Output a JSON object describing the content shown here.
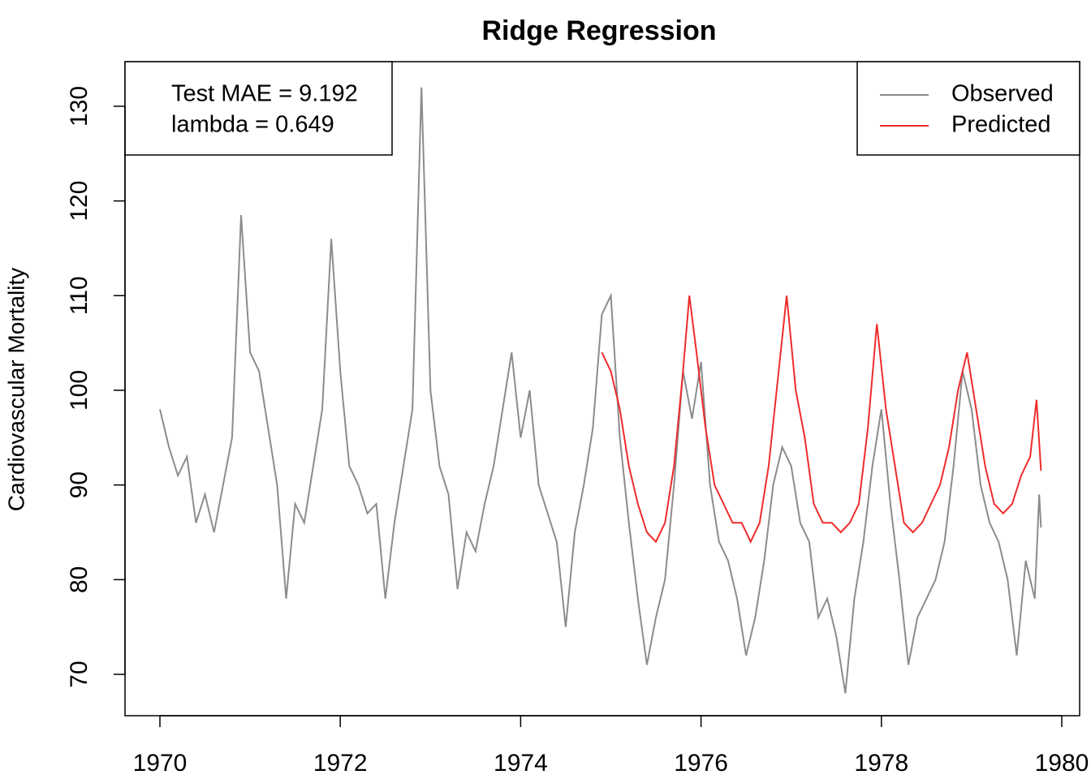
{
  "chart_data": {
    "type": "line",
    "title": "Ridge Regression",
    "y_label": "Cardiovascular Mortality",
    "annotations": [
      "Test MAE = 9.192",
      "lambda = 0.649"
    ],
    "xlim": [
      1969.613,
      1980.198
    ],
    "xticks": [
      1970,
      1972,
      1974,
      1976,
      1978,
      1980
    ],
    "ylim": [
      65.63,
      134.71
    ],
    "yticks": [
      70,
      80,
      90,
      100,
      110,
      120,
      130
    ],
    "grid": false,
    "legend": "top-right",
    "series": [
      {
        "name": "Observed",
        "color": "#8c8c8c",
        "x": [
          1970.0,
          1970.1,
          1970.2,
          1970.3,
          1970.4,
          1970.5,
          1970.6,
          1970.7,
          1970.8,
          1970.9,
          1971.0,
          1971.1,
          1971.2,
          1971.3,
          1971.4,
          1971.5,
          1971.6,
          1971.7,
          1971.8,
          1971.9,
          1972.0,
          1972.1,
          1972.2,
          1972.3,
          1972.4,
          1972.5,
          1972.6,
          1972.7,
          1972.8,
          1972.9,
          1973.0,
          1973.1,
          1973.2,
          1973.3,
          1973.4,
          1973.5,
          1973.6,
          1973.7,
          1973.8,
          1973.9,
          1974.0,
          1974.1,
          1974.2,
          1974.3,
          1974.4,
          1974.5,
          1974.6,
          1974.7,
          1974.8,
          1974.9,
          1975.0,
          1975.1,
          1975.2,
          1975.3,
          1975.4,
          1975.5,
          1975.6,
          1975.7,
          1975.8,
          1975.9,
          1976.0,
          1976.1,
          1976.2,
          1976.3,
          1976.4,
          1976.5,
          1976.6,
          1976.7,
          1976.8,
          1976.9,
          1977.0,
          1977.1,
          1977.2,
          1977.3,
          1977.4,
          1977.5,
          1977.6,
          1977.7,
          1977.8,
          1977.9,
          1978.0,
          1978.1,
          1978.2,
          1978.3,
          1978.4,
          1978.5,
          1978.6,
          1978.7,
          1978.8,
          1978.9,
          1979.0,
          1979.1,
          1979.2,
          1979.3,
          1979.4,
          1979.5,
          1979.6,
          1979.7,
          1979.75,
          1979.77
        ],
        "values": [
          98,
          94,
          91,
          93,
          86,
          89,
          85,
          90,
          95,
          118.5,
          104,
          102,
          96,
          90,
          78,
          88,
          86,
          92,
          98,
          116,
          102,
          92,
          90,
          87,
          88,
          78,
          86,
          92,
          98,
          132,
          100,
          92,
          89,
          79,
          85,
          83,
          88,
          92,
          98,
          104,
          95,
          100,
          90,
          87,
          84,
          75,
          85,
          90,
          96,
          108,
          110,
          95,
          86,
          78,
          71,
          76,
          80,
          90,
          102,
          97,
          103,
          90,
          84,
          82,
          78,
          72,
          76,
          82,
          90,
          94,
          92,
          86,
          84,
          76,
          78,
          74,
          68,
          78,
          84,
          92,
          98,
          88,
          80,
          71,
          76,
          78,
          80,
          84,
          92,
          102,
          98,
          90,
          86,
          84,
          80,
          72,
          82,
          78,
          89,
          85.5
        ]
      },
      {
        "name": "Predicted",
        "color": "#ee2c2c",
        "x": [
          1974.9,
          1975.0,
          1975.1,
          1975.2,
          1975.3,
          1975.4,
          1975.5,
          1975.6,
          1975.7,
          1975.8,
          1975.87,
          1975.95,
          1976.05,
          1976.15,
          1976.25,
          1976.35,
          1976.45,
          1976.55,
          1976.65,
          1976.75,
          1976.85,
          1976.95,
          1977.05,
          1977.15,
          1977.25,
          1977.35,
          1977.45,
          1977.55,
          1977.65,
          1977.75,
          1977.85,
          1977.95,
          1978.05,
          1978.15,
          1978.25,
          1978.35,
          1978.45,
          1978.55,
          1978.65,
          1978.75,
          1978.85,
          1978.95,
          1979.05,
          1979.15,
          1979.25,
          1979.35,
          1979.45,
          1979.55,
          1979.65,
          1979.72,
          1979.77
        ],
        "values": [
          104,
          102,
          98,
          92,
          88,
          85,
          84,
          86,
          92,
          102,
          110,
          104,
          96,
          90,
          88,
          86,
          86,
          84,
          86,
          92,
          101,
          110,
          100,
          95,
          88,
          86,
          86,
          85,
          86,
          88,
          96,
          107,
          98,
          92,
          86,
          85,
          86,
          88,
          90,
          94,
          100,
          104,
          98,
          92,
          88,
          87,
          88,
          91,
          93,
          99,
          91.5
        ]
      }
    ]
  }
}
